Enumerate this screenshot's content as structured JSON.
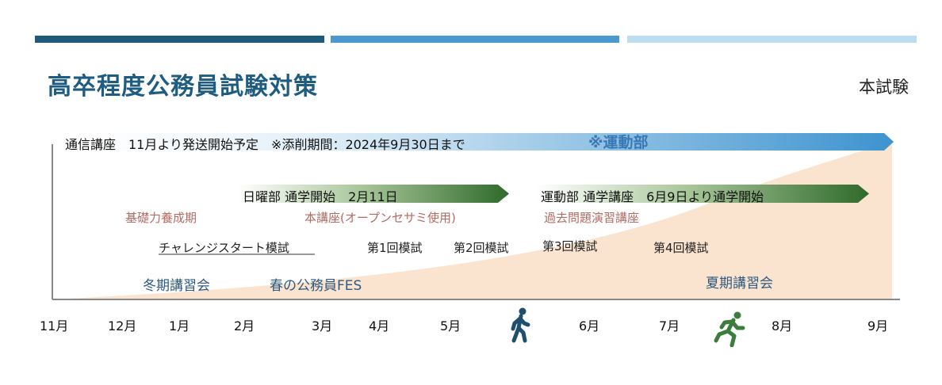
{
  "header": {
    "title": "高卒程度公務員試験対策",
    "exam_label": "本試験",
    "stripe_colors": [
      "#1f5a7d",
      "#4a9ad1",
      "#bcdcf0"
    ]
  },
  "banners": {
    "correspondence": "通信講座　11月より発送開始予定　※添削期間：2024年9月30日まで",
    "sports_note": "※運動部",
    "sunday": "日曜部 通学開始　2月11日",
    "sports_course": "運動部 通学講座　6月9日より通学開始"
  },
  "phases": {
    "foundation": "基礎力養成期",
    "main_course": "本講座(オープンセサミ使用)",
    "past_exams": "過去問題演習講座"
  },
  "mock_exams": {
    "challenge": "チャレンジスタート模試",
    "first": "第1回模試",
    "second": "第2回模試",
    "third": "第3回模試",
    "fourth": "第4回模試"
  },
  "events": {
    "winter": "冬期講習会",
    "spring": "春の公務員FES",
    "summer": "夏期講習会"
  },
  "months": [
    "11月",
    "12月",
    "1月",
    "2月",
    "3月",
    "4月",
    "5月",
    "6月",
    "7月",
    "8月",
    "9月"
  ],
  "icons": {
    "walker": "walking-person-icon",
    "runner": "running-person-icon",
    "walker_color": "#1f4f6e",
    "runner_color": "#3c7d3c"
  }
}
